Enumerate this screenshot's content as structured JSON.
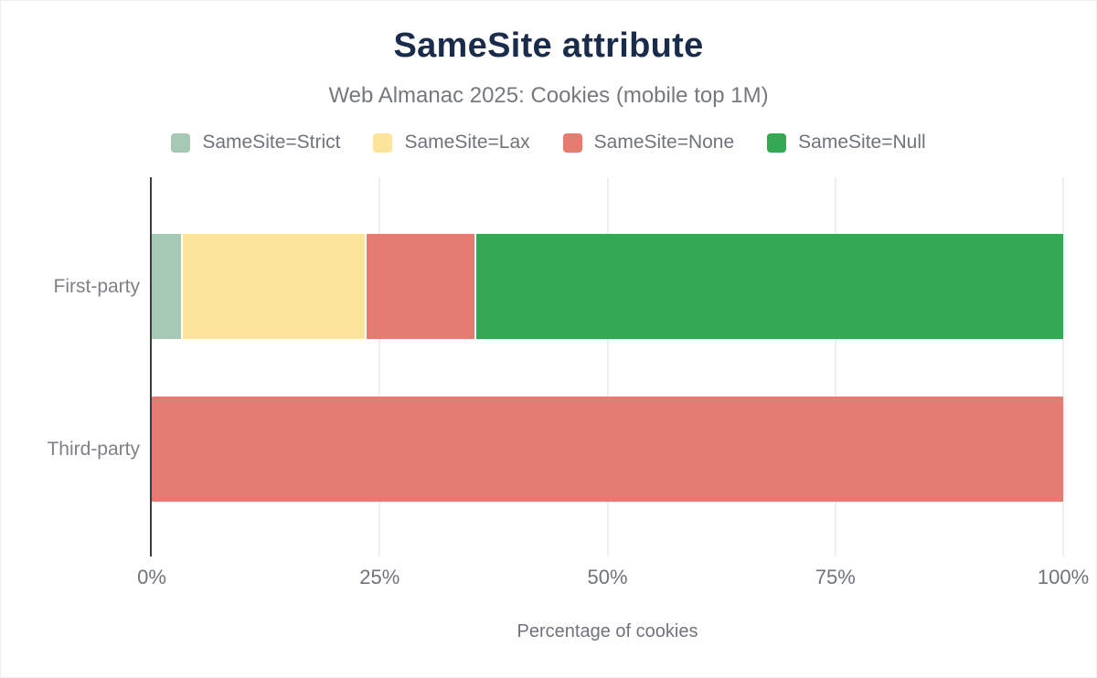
{
  "chart_data": {
    "type": "bar",
    "orientation": "horizontal",
    "stacked": true,
    "title": "SameSite attribute",
    "subtitle": "Web Almanac 2025: Cookies (mobile top 1M)",
    "xlabel": "Percentage of cookies",
    "categories": [
      "First-party",
      "Third-party"
    ],
    "series": [
      {
        "name": "SameSite=Strict",
        "color": "#a6c9b6",
        "values": [
          3.2,
          0
        ]
      },
      {
        "name": "SameSite=Lax",
        "color": "#fde49b",
        "values": [
          20.1,
          0
        ]
      },
      {
        "name": "SameSite=None",
        "color": "#e57c72",
        "values": [
          11.9,
          100
        ]
      },
      {
        "name": "SameSite=Null",
        "color": "#34a853",
        "values": [
          64.8,
          0
        ]
      }
    ],
    "x_ticks": [
      "0%",
      "25%",
      "50%",
      "75%",
      "100%"
    ],
    "xlim": [
      0,
      100
    ],
    "legend_position": "top",
    "grid": "vertical",
    "colors": {
      "title_text": "#1b2b4a",
      "secondary_text": "#6e747b",
      "axis_line": "#393d42",
      "gridline": "#efefef",
      "background": "#ffffff"
    }
  }
}
